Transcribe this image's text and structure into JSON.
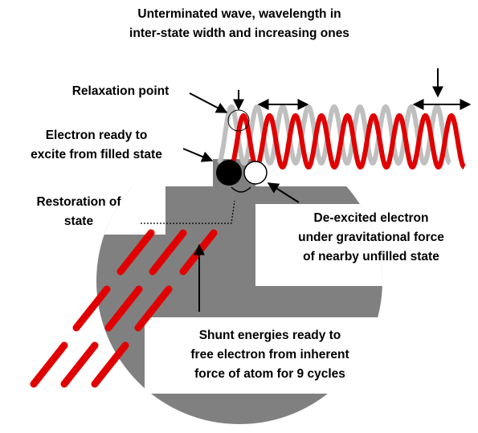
{
  "labels": {
    "wave": [
      "Unterminated wave, wavelength in",
      "inter-state width and increasing ones"
    ],
    "relaxation": [
      "Relaxation point"
    ],
    "ready": [
      "Electron ready to",
      "excite from filled state"
    ],
    "restoration": [
      "Restoration of",
      "state"
    ],
    "deexcited": [
      "De-excited electron",
      "under gravitational force",
      "of nearby unfilled state"
    ],
    "shunt": [
      "Shunt energies ready to",
      "free electron from inherent",
      "force of atom for 9 cycles"
    ]
  }
}
